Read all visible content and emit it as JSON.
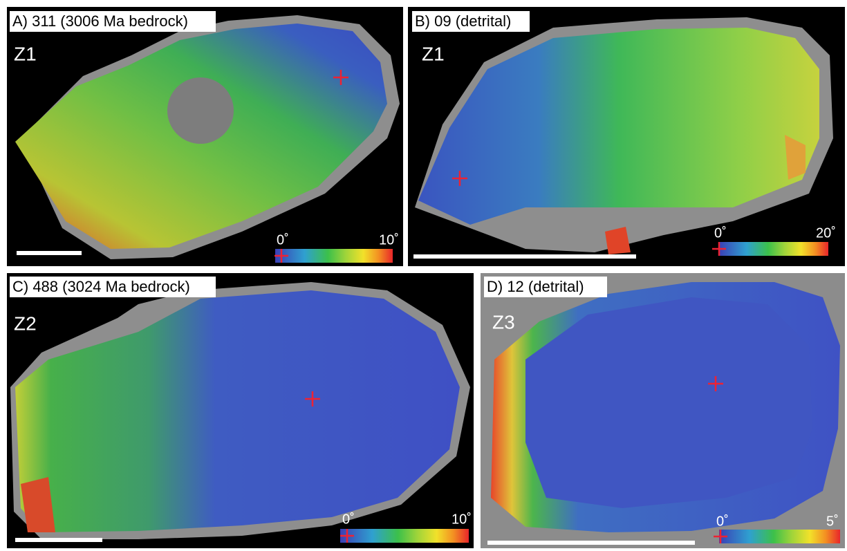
{
  "panels": [
    {
      "label": "A) 311 (3006 Ma bedrock)",
      "zone": "Z1",
      "scale_min": "0˚",
      "scale_max": "10˚"
    },
    {
      "label": "B) 09 (detrital)",
      "zone": "Z1",
      "scale_min": "0˚",
      "scale_max": "20˚"
    },
    {
      "label": "C) 488 (3024 Ma bedrock)",
      "zone": "Z2",
      "scale_min": "0˚",
      "scale_max": "10˚"
    },
    {
      "label": "D) 12 (detrital)",
      "zone": "Z3",
      "scale_min": "0˚",
      "scale_max": "5˚"
    }
  ]
}
